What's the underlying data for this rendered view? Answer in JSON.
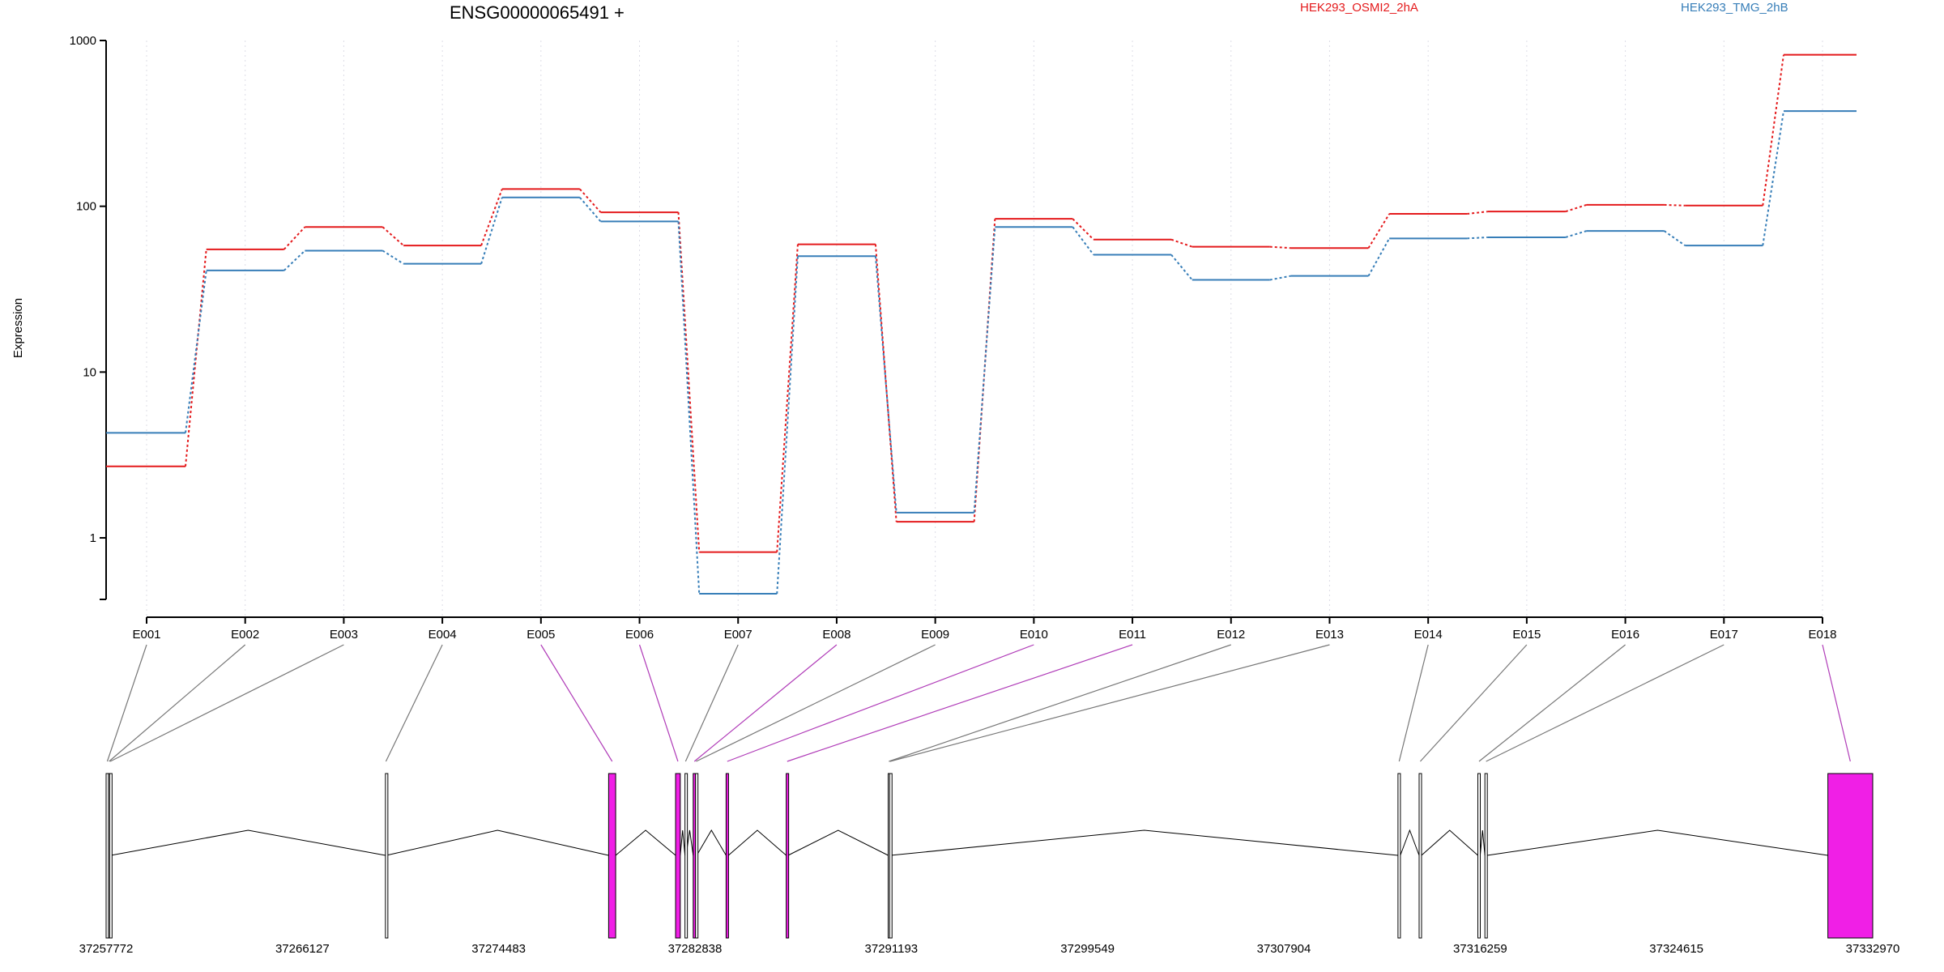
{
  "chart_data": {
    "type": "line",
    "title": "ENSG00000065491 +",
    "ylabel": "Expression",
    "xlabel": "",
    "y_scale": "log",
    "ylim": [
      0.45,
      1000
    ],
    "y_ticks": [
      "1000",
      "100",
      "10",
      "1"
    ],
    "y_tick_values": [
      1000,
      100,
      10,
      1
    ],
    "grid": "vertical dotted at each exon",
    "legend_placement": "top",
    "categories": [
      "E001",
      "E002",
      "E003",
      "E004",
      "E005",
      "E006",
      "E007",
      "E008",
      "E009",
      "E010",
      "E011",
      "E012",
      "E013",
      "E014",
      "E015",
      "E016",
      "E017",
      "E018"
    ],
    "series": [
      {
        "name": "HEK293_OSMI2_2hA",
        "color": "#e41a1c",
        "values": [
          2.7,
          55,
          75,
          58,
          127,
          92,
          0.82,
          59,
          1.25,
          84,
          63,
          57,
          56,
          90,
          93,
          102,
          101,
          820
        ]
      },
      {
        "name": "HEK293_TMG_2hB",
        "color": "#377eb8",
        "values": [
          4.3,
          41,
          54,
          45,
          113,
          81,
          0.46,
          50,
          1.42,
          75,
          51,
          36,
          38,
          64,
          65,
          71,
          58,
          375
        ]
      }
    ],
    "genomic_axis": {
      "tick_labels": [
        "37257772",
        "37266127",
        "37274483",
        "37282838",
        "37291193",
        "37299549",
        "37307904",
        "37316259",
        "37324615",
        "37332970"
      ],
      "range": [
        37257772,
        37332970
      ]
    },
    "gene_model": {
      "exon_color": "#f01fe6",
      "neutral_color": "#ffffff",
      "exons": [
        {
          "id": "E001",
          "start": 37257772,
          "end": 37257872,
          "highlight": false
        },
        {
          "id": "E002",
          "start": 37257872,
          "end": 37257922,
          "highlight": false
        },
        {
          "id": "E003",
          "start": 37257922,
          "end": 37257972,
          "highlight": false
        },
        {
          "id": "E004",
          "start": 37269662,
          "end": 37269702,
          "highlight": false
        },
        {
          "id": "E005",
          "start": 37279162,
          "end": 37279462,
          "highlight": true
        },
        {
          "id": "E006",
          "start": 37282012,
          "end": 37282212,
          "highlight": true
        },
        {
          "id": "E007",
          "start": 37282412,
          "end": 37282462,
          "highlight": false
        },
        {
          "id": "E008",
          "start": 37282762,
          "end": 37282862,
          "highlight": true
        },
        {
          "id": "E009",
          "start": 37282862,
          "end": 37282912,
          "highlight": false
        },
        {
          "id": "E010",
          "start": 37284162,
          "end": 37284262,
          "highlight": true
        },
        {
          "id": "E011",
          "start": 37286722,
          "end": 37286802,
          "highlight": true
        },
        {
          "id": "E012",
          "start": 37291062,
          "end": 37291122,
          "highlight": false
        },
        {
          "id": "E013",
          "start": 37291122,
          "end": 37291162,
          "highlight": false
        },
        {
          "id": "E014",
          "start": 37312762,
          "end": 37312862,
          "highlight": false
        },
        {
          "id": "E015",
          "start": 37313662,
          "end": 37313762,
          "highlight": false
        },
        {
          "id": "E016",
          "start": 37316162,
          "end": 37316262,
          "highlight": false
        },
        {
          "id": "E017",
          "start": 37316462,
          "end": 37316562,
          "highlight": false
        },
        {
          "id": "E018",
          "start": 37331062,
          "end": 37332970,
          "highlight": true
        }
      ]
    }
  }
}
